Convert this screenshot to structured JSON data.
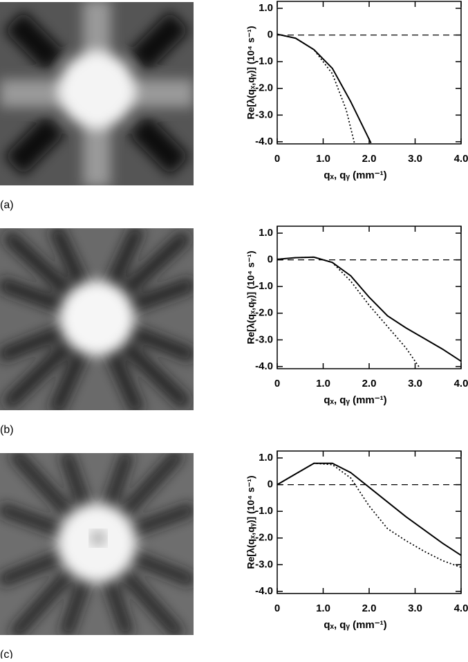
{
  "chart_data": [
    {
      "type": "line",
      "panel_label": "(a)",
      "x_label": "qₓ, qᵧ (mm⁻¹)",
      "y_label": "Re[λ(qₓ,qᵧ)] (10⁴ s⁻¹)",
      "xlim": [
        0,
        4
      ],
      "ylim": [
        -4.08,
        1.26
      ],
      "xticks": [
        0,
        {
          "value": 1,
          "label": "1.0"
        },
        {
          "value": 2,
          "label": "2.0"
        },
        {
          "value": 3,
          "label": "3.0"
        },
        {
          "value": 4,
          "label": "4.0"
        }
      ],
      "yticks": [
        {
          "value": 1,
          "label": "1.0"
        },
        0,
        {
          "value": -1,
          "label": "-1.0"
        },
        {
          "value": -2,
          "label": "-2.0"
        },
        {
          "value": -3,
          "label": "-3.0"
        },
        {
          "value": -4,
          "label": "-4.0"
        }
      ],
      "reference_line": 0,
      "series": [
        {
          "color": "#000000",
          "style": "solid",
          "x": [
            0,
            0.4,
            0.8,
            1.2,
            1.6,
            2.04
          ],
          "values": [
            0.03,
            -0.12,
            -0.55,
            -1.25,
            -2.5,
            -4.05
          ]
        },
        {
          "color": "#000000",
          "style": "dotted",
          "x": [
            0,
            0.4,
            0.8,
            1.2,
            1.5,
            1.68
          ],
          "values": [
            0.03,
            -0.12,
            -0.55,
            -1.45,
            -2.8,
            -4.05
          ]
        }
      ]
    },
    {
      "type": "line",
      "panel_label": "(b)",
      "x_label": "qₓ, qᵧ (mm⁻¹)",
      "y_label": "Re[λ(qₓ,qᵧ)] (10⁴ s⁻¹)",
      "xlim": [
        0,
        4
      ],
      "ylim": [
        -4.08,
        1.26
      ],
      "xticks": [
        0,
        {
          "value": 1,
          "label": "1.0"
        },
        {
          "value": 2,
          "label": "2.0"
        },
        {
          "value": 3,
          "label": "3.0"
        },
        {
          "value": 4,
          "label": "4.0"
        }
      ],
      "yticks": [
        {
          "value": 1,
          "label": "1.0"
        },
        0,
        {
          "value": -1,
          "label": "-1.0"
        },
        {
          "value": -2,
          "label": "-2.0"
        },
        {
          "value": -3,
          "label": "-3.0"
        },
        {
          "value": -4,
          "label": "-4.0"
        }
      ],
      "reference_line": 0,
      "series": [
        {
          "color": "#000000",
          "style": "solid",
          "x": [
            0,
            0.4,
            0.8,
            1.2,
            1.6,
            2.0,
            2.4,
            2.8,
            3.2,
            3.6,
            4.0
          ],
          "values": [
            0.02,
            0.08,
            0.1,
            -0.1,
            -0.6,
            -1.4,
            -2.1,
            -2.55,
            -2.95,
            -3.35,
            -3.8
          ]
        },
        {
          "color": "#000000",
          "style": "dotted",
          "x": [
            0,
            0.4,
            0.8,
            1.2,
            1.6,
            2.0,
            2.4,
            2.8,
            3.1
          ],
          "values": [
            0.02,
            0.08,
            0.1,
            -0.1,
            -0.8,
            -1.7,
            -2.5,
            -3.3,
            -4.05
          ]
        }
      ]
    },
    {
      "type": "line",
      "panel_label": "(c)",
      "x_label": "qₓ, qᵧ (mm⁻¹)",
      "y_label": "Re[λ(qₓ,qᵧ)] (10⁴ s⁻¹)",
      "xlim": [
        0,
        4
      ],
      "ylim": [
        -4.08,
        1.26
      ],
      "xticks": [
        0,
        {
          "value": 1,
          "label": "1.0"
        },
        {
          "value": 2,
          "label": "2.0"
        },
        {
          "value": 3,
          "label": "3.0"
        },
        {
          "value": 4,
          "label": "4.0"
        }
      ],
      "yticks": [
        {
          "value": 1,
          "label": "1.0"
        },
        0,
        {
          "value": -1,
          "label": "-1.0"
        },
        {
          "value": -2,
          "label": "-2.0"
        },
        {
          "value": -3,
          "label": "-3.0"
        },
        {
          "value": -4,
          "label": "-4.0"
        }
      ],
      "reference_line": 0,
      "series": [
        {
          "color": "#000000",
          "style": "solid",
          "x": [
            0,
            0.4,
            0.8,
            1.2,
            1.6,
            2.0,
            2.4,
            2.8,
            3.2,
            3.6,
            4.0
          ],
          "values": [
            0.0,
            0.4,
            0.8,
            0.8,
            0.45,
            -0.1,
            -0.65,
            -1.2,
            -1.7,
            -2.2,
            -2.65
          ]
        },
        {
          "color": "#000000",
          "style": "dotted",
          "x": [
            0,
            0.4,
            0.8,
            1.2,
            1.6,
            2.0,
            2.4,
            2.8,
            3.2,
            3.6,
            4.0
          ],
          "values": [
            0.0,
            0.4,
            0.8,
            0.75,
            0.25,
            -0.8,
            -1.65,
            -2.1,
            -2.5,
            -2.85,
            -3.1
          ]
        }
      ]
    }
  ]
}
